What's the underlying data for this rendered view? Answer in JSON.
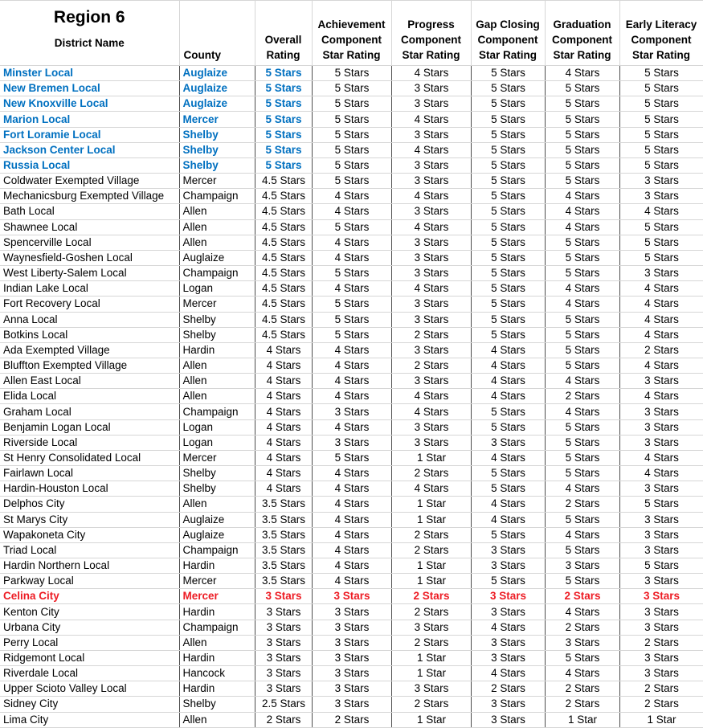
{
  "colors": {
    "blue": "#0070C0",
    "red": "#ED1C24",
    "grid_light": "#d6d6d6",
    "grid_dark": "#4d4d4d"
  },
  "chart_data": {
    "type": "table",
    "title": "Region 6",
    "columns": [
      {
        "label": "District Name"
      },
      {
        "label": "County"
      },
      {
        "lines": [
          "Overall",
          "Rating"
        ]
      },
      {
        "lines": [
          "Achievement",
          "Component",
          "Star Rating"
        ]
      },
      {
        "lines": [
          "Progress",
          "Component",
          "Star Rating"
        ]
      },
      {
        "lines": [
          "Gap Closing",
          "Component",
          "Star Rating"
        ]
      },
      {
        "lines": [
          "Graduation",
          "Component",
          "Star Rating"
        ]
      },
      {
        "lines": [
          "Early Literacy",
          "Component",
          "Star Rating"
        ]
      }
    ],
    "rows": [
      {
        "style": "blue",
        "cells": [
          "Minster Local",
          "Auglaize",
          "5 Stars",
          "5 Stars",
          "4 Stars",
          "5 Stars",
          "4 Stars",
          "5 Stars"
        ]
      },
      {
        "style": "blue",
        "cells": [
          "New Bremen Local",
          "Auglaize",
          "5 Stars",
          "5 Stars",
          "3 Stars",
          "5 Stars",
          "5 Stars",
          "5 Stars"
        ]
      },
      {
        "style": "blue",
        "cells": [
          "New Knoxville Local",
          "Auglaize",
          "5 Stars",
          "5 Stars",
          "3 Stars",
          "5 Stars",
          "5 Stars",
          "5 Stars"
        ]
      },
      {
        "style": "blue",
        "cells": [
          "Marion Local",
          "Mercer",
          "5 Stars",
          "5 Stars",
          "4 Stars",
          "5 Stars",
          "5 Stars",
          "5 Stars"
        ]
      },
      {
        "style": "blue",
        "cells": [
          "Fort Loramie Local",
          "Shelby",
          "5 Stars",
          "5 Stars",
          "3 Stars",
          "5 Stars",
          "5 Stars",
          "5 Stars"
        ]
      },
      {
        "style": "blue",
        "cells": [
          "Jackson Center Local",
          "Shelby",
          "5 Stars",
          "5 Stars",
          "4 Stars",
          "5 Stars",
          "5 Stars",
          "5 Stars"
        ]
      },
      {
        "style": "blue",
        "cells": [
          "Russia Local",
          "Shelby",
          "5 Stars",
          "5 Stars",
          "3 Stars",
          "5 Stars",
          "5 Stars",
          "5 Stars"
        ]
      },
      {
        "style": "none",
        "cells": [
          "Coldwater Exempted Village",
          "Mercer",
          "4.5 Stars",
          "5 Stars",
          "3 Stars",
          "5 Stars",
          "5 Stars",
          "3 Stars"
        ]
      },
      {
        "style": "none",
        "cells": [
          "Mechanicsburg Exempted Village",
          "Champaign",
          "4.5 Stars",
          "4 Stars",
          "4 Stars",
          "5 Stars",
          "4 Stars",
          "3 Stars"
        ]
      },
      {
        "style": "none",
        "cells": [
          "Bath Local",
          "Allen",
          "4.5 Stars",
          "4 Stars",
          "3 Stars",
          "5 Stars",
          "4 Stars",
          "4 Stars"
        ]
      },
      {
        "style": "none",
        "cells": [
          "Shawnee Local",
          "Allen",
          "4.5 Stars",
          "5 Stars",
          "4 Stars",
          "5 Stars",
          "4 Stars",
          "5 Stars"
        ]
      },
      {
        "style": "none",
        "cells": [
          "Spencerville Local",
          "Allen",
          "4.5 Stars",
          "4 Stars",
          "3 Stars",
          "5 Stars",
          "5 Stars",
          "5 Stars"
        ]
      },
      {
        "style": "none",
        "cells": [
          "Waynesfield-Goshen Local",
          "Auglaize",
          "4.5 Stars",
          "4 Stars",
          "3 Stars",
          "5 Stars",
          "5 Stars",
          "5 Stars"
        ]
      },
      {
        "style": "none",
        "cells": [
          "West Liberty-Salem Local",
          "Champaign",
          "4.5 Stars",
          "5 Stars",
          "3 Stars",
          "5 Stars",
          "5 Stars",
          "3 Stars"
        ]
      },
      {
        "style": "none",
        "cells": [
          "Indian Lake Local",
          "Logan",
          "4.5 Stars",
          "4 Stars",
          "4 Stars",
          "5 Stars",
          "4 Stars",
          "4 Stars"
        ]
      },
      {
        "style": "none",
        "cells": [
          "Fort Recovery Local",
          "Mercer",
          "4.5 Stars",
          "5 Stars",
          "3 Stars",
          "5 Stars",
          "4 Stars",
          "4 Stars"
        ]
      },
      {
        "style": "none",
        "cells": [
          "Anna Local",
          "Shelby",
          "4.5 Stars",
          "5 Stars",
          "3 Stars",
          "5 Stars",
          "5 Stars",
          "4 Stars"
        ]
      },
      {
        "style": "none",
        "cells": [
          "Botkins Local",
          "Shelby",
          "4.5 Stars",
          "5 Stars",
          "2 Stars",
          "5 Stars",
          "5 Stars",
          "4 Stars"
        ]
      },
      {
        "style": "none",
        "cells": [
          "Ada Exempted Village",
          "Hardin",
          "4 Stars",
          "4 Stars",
          "3 Stars",
          "4 Stars",
          "5 Stars",
          "2 Stars"
        ]
      },
      {
        "style": "none",
        "cells": [
          "Bluffton Exempted Village",
          "Allen",
          "4 Stars",
          "4 Stars",
          "2 Stars",
          "4 Stars",
          "5 Stars",
          "4 Stars"
        ]
      },
      {
        "style": "none",
        "cells": [
          "Allen East Local",
          "Allen",
          "4 Stars",
          "4 Stars",
          "3 Stars",
          "4 Stars",
          "4 Stars",
          "3 Stars"
        ]
      },
      {
        "style": "none",
        "cells": [
          "Elida Local",
          "Allen",
          "4 Stars",
          "4 Stars",
          "4 Stars",
          "4 Stars",
          "2 Stars",
          "4 Stars"
        ]
      },
      {
        "style": "none",
        "cells": [
          "Graham Local",
          "Champaign",
          "4 Stars",
          "3 Stars",
          "4 Stars",
          "5 Stars",
          "4 Stars",
          "3 Stars"
        ]
      },
      {
        "style": "none",
        "cells": [
          "Benjamin Logan Local",
          "Logan",
          "4 Stars",
          "4 Stars",
          "3 Stars",
          "5 Stars",
          "5 Stars",
          "3 Stars"
        ]
      },
      {
        "style": "none",
        "cells": [
          "Riverside Local",
          "Logan",
          "4 Stars",
          "3 Stars",
          "3 Stars",
          "3 Stars",
          "5 Stars",
          "3 Stars"
        ]
      },
      {
        "style": "none",
        "cells": [
          "St Henry Consolidated Local",
          "Mercer",
          "4 Stars",
          "5 Stars",
          "1 Star",
          "4 Stars",
          "5 Stars",
          "4 Stars"
        ]
      },
      {
        "style": "none",
        "cells": [
          "Fairlawn Local",
          "Shelby",
          "4 Stars",
          "4 Stars",
          "2 Stars",
          "5 Stars",
          "5 Stars",
          "4 Stars"
        ]
      },
      {
        "style": "none",
        "cells": [
          "Hardin-Houston Local",
          "Shelby",
          "4 Stars",
          "4 Stars",
          "4 Stars",
          "5 Stars",
          "4 Stars",
          "3 Stars"
        ]
      },
      {
        "style": "none",
        "cells": [
          "Delphos City",
          "Allen",
          "3.5 Stars",
          "4 Stars",
          "1 Star",
          "4 Stars",
          "2 Stars",
          "5 Stars"
        ]
      },
      {
        "style": "none",
        "cells": [
          "St Marys City",
          "Auglaize",
          "3.5 Stars",
          "4 Stars",
          "1 Star",
          "4 Stars",
          "5 Stars",
          "3 Stars"
        ]
      },
      {
        "style": "none",
        "cells": [
          "Wapakoneta City",
          "Auglaize",
          "3.5 Stars",
          "4 Stars",
          "2 Stars",
          "5 Stars",
          "4 Stars",
          "3 Stars"
        ]
      },
      {
        "style": "none",
        "cells": [
          "Triad Local",
          "Champaign",
          "3.5 Stars",
          "4 Stars",
          "2 Stars",
          "3 Stars",
          "5 Stars",
          "3 Stars"
        ]
      },
      {
        "style": "none",
        "cells": [
          "Hardin Northern Local",
          "Hardin",
          "3.5 Stars",
          "4 Stars",
          "1 Star",
          "3 Stars",
          "3 Stars",
          "5 Stars"
        ]
      },
      {
        "style": "none",
        "cells": [
          "Parkway Local",
          "Mercer",
          "3.5 Stars",
          "4 Stars",
          "1 Star",
          "5 Stars",
          "5 Stars",
          "3 Stars"
        ]
      },
      {
        "style": "red",
        "cells": [
          "Celina City",
          "Mercer",
          "3 Stars",
          "3 Stars",
          "2 Stars",
          "3 Stars",
          "2 Stars",
          "3 Stars"
        ]
      },
      {
        "style": "none",
        "cells": [
          "Kenton City",
          "Hardin",
          "3 Stars",
          "3 Stars",
          "2 Stars",
          "3 Stars",
          "4 Stars",
          "3 Stars"
        ]
      },
      {
        "style": "none",
        "cells": [
          "Urbana City",
          "Champaign",
          "3 Stars",
          "3 Stars",
          "3 Stars",
          "4 Stars",
          "2 Stars",
          "3 Stars"
        ]
      },
      {
        "style": "none",
        "cells": [
          "Perry Local",
          "Allen",
          "3 Stars",
          "3 Stars",
          "2 Stars",
          "3 Stars",
          "3 Stars",
          "2 Stars"
        ]
      },
      {
        "style": "none",
        "cells": [
          "Ridgemont Local",
          "Hardin",
          "3 Stars",
          "3 Stars",
          "1 Star",
          "3 Stars",
          "5 Stars",
          "3 Stars"
        ]
      },
      {
        "style": "none",
        "cells": [
          "Riverdale Local",
          "Hancock",
          "3 Stars",
          "3 Stars",
          "1 Star",
          "4 Stars",
          "4 Stars",
          "3 Stars"
        ]
      },
      {
        "style": "none",
        "cells": [
          "Upper Scioto Valley Local",
          "Hardin",
          "3 Stars",
          "3 Stars",
          "3 Stars",
          "2 Stars",
          "2 Stars",
          "2 Stars"
        ]
      },
      {
        "style": "none",
        "cells": [
          "Sidney City",
          "Shelby",
          "2.5 Stars",
          "3 Stars",
          "2 Stars",
          "3 Stars",
          "2 Stars",
          "2 Stars"
        ]
      },
      {
        "style": "none",
        "cells": [
          "Lima City",
          "Allen",
          "2 Stars",
          "2 Stars",
          "1 Star",
          "3 Stars",
          "1 Star",
          "1 Star"
        ]
      }
    ]
  }
}
